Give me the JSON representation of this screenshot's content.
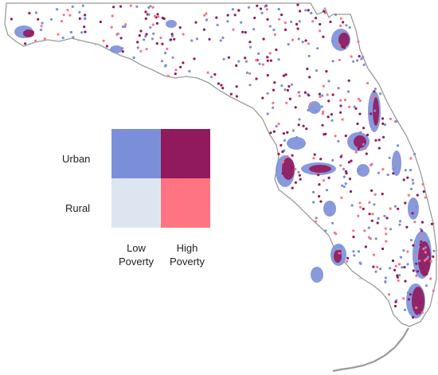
{
  "legend": {
    "row_labels": {
      "urban": "Urban",
      "rural": "Rural"
    },
    "col_labels": {
      "low": "Low\nPoverty",
      "high": "High\nPoverty"
    },
    "colors": {
      "urban_low": "#7b8fd8",
      "urban_high": "#911a5c",
      "rural_low": "#dde6f0",
      "rural_high": "#ff7482"
    }
  },
  "map_colors": {
    "outline": "#9a9a9a",
    "county_line": "#a8a8a8",
    "land": "#ffffff"
  }
}
